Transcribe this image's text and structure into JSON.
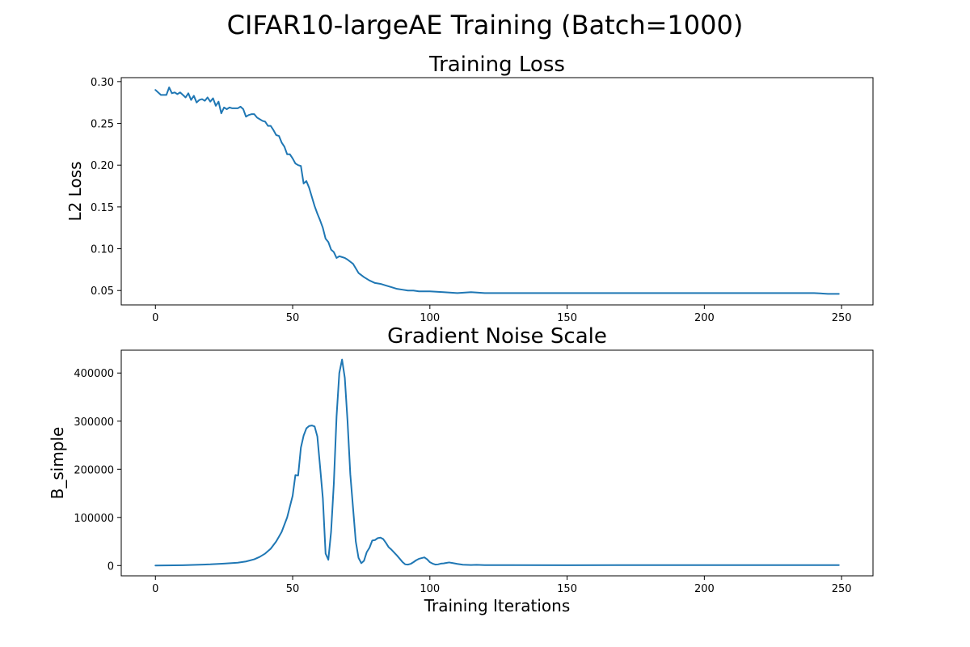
{
  "figure": {
    "suptitle": "CIFAR10-largeAE Training (Batch=1000)"
  },
  "chart_data": [
    {
      "type": "line",
      "title": "Training Loss",
      "xlabel": "",
      "ylabel": "L2 Loss",
      "xlim": [
        -12.45,
        261.45
      ],
      "ylim": [
        0.0328,
        0.3047
      ],
      "xticks": [
        0,
        50,
        100,
        150,
        200,
        250
      ],
      "xtick_labels": [
        "0",
        "50",
        "100",
        "150",
        "200",
        "250"
      ],
      "yticks": [
        0.05,
        0.1,
        0.15,
        0.2,
        0.25,
        0.3
      ],
      "ytick_labels": [
        "0.05",
        "0.10",
        "0.15",
        "0.20",
        "0.25",
        "0.30"
      ],
      "grid": false,
      "color": "#1f77b4",
      "series": [
        {
          "x": [
            0,
            2,
            3,
            4,
            5,
            6,
            7,
            8,
            9,
            10,
            11,
            12,
            13,
            14,
            15,
            16,
            17,
            18,
            19,
            20,
            21,
            22,
            23,
            24,
            25,
            26,
            27,
            28,
            29,
            30,
            31,
            32,
            33,
            34,
            35,
            36,
            37,
            38,
            39,
            40,
            41,
            42,
            43,
            44,
            45,
            46,
            47,
            48,
            49,
            50,
            51,
            52,
            53,
            54,
            55,
            56,
            57,
            58,
            59,
            60,
            61,
            62,
            63,
            64,
            65,
            66,
            67,
            68,
            69,
            70,
            72,
            74,
            76,
            78,
            80,
            82,
            84,
            86,
            88,
            90,
            92,
            94,
            96,
            98,
            100,
            105,
            110,
            115,
            120,
            125,
            130,
            135,
            140,
            145,
            150,
            155,
            160,
            165,
            170,
            175,
            180,
            185,
            190,
            195,
            200,
            205,
            210,
            215,
            220,
            225,
            230,
            235,
            240,
            245,
            249
          ],
          "y": [
            0.29,
            0.284,
            0.284,
            0.284,
            0.293,
            0.286,
            0.287,
            0.285,
            0.287,
            0.284,
            0.281,
            0.286,
            0.278,
            0.283,
            0.275,
            0.278,
            0.279,
            0.277,
            0.281,
            0.276,
            0.28,
            0.271,
            0.276,
            0.262,
            0.269,
            0.267,
            0.269,
            0.268,
            0.268,
            0.268,
            0.27,
            0.267,
            0.258,
            0.26,
            0.261,
            0.261,
            0.257,
            0.255,
            0.253,
            0.252,
            0.247,
            0.247,
            0.242,
            0.236,
            0.235,
            0.227,
            0.222,
            0.213,
            0.213,
            0.208,
            0.202,
            0.2,
            0.199,
            0.178,
            0.181,
            0.173,
            0.162,
            0.151,
            0.142,
            0.134,
            0.125,
            0.112,
            0.108,
            0.099,
            0.096,
            0.089,
            0.091,
            0.09,
            0.089,
            0.087,
            0.082,
            0.071,
            0.066,
            0.062,
            0.059,
            0.058,
            0.056,
            0.054,
            0.052,
            0.051,
            0.05,
            0.05,
            0.049,
            0.049,
            0.049,
            0.048,
            0.047,
            0.048,
            0.047,
            0.047,
            0.047,
            0.047,
            0.047,
            0.047,
            0.047,
            0.047,
            0.047,
            0.047,
            0.047,
            0.047,
            0.047,
            0.047,
            0.047,
            0.047,
            0.047,
            0.047,
            0.047,
            0.047,
            0.047,
            0.047,
            0.047,
            0.047,
            0.047,
            0.046,
            0.046
          ]
        }
      ]
    },
    {
      "type": "line",
      "title": "Gradient Noise Scale",
      "xlabel": "Training Iterations",
      "ylabel": "B_simple",
      "xlim": [
        -12.45,
        261.45
      ],
      "ylim": [
        -21350,
        447460
      ],
      "xticks": [
        0,
        50,
        100,
        150,
        200,
        250
      ],
      "xtick_labels": [
        "0",
        "50",
        "100",
        "150",
        "200",
        "250"
      ],
      "yticks": [
        0,
        100000,
        200000,
        300000,
        400000
      ],
      "ytick_labels": [
        "0",
        "100000",
        "200000",
        "300000",
        "400000"
      ],
      "grid": false,
      "color": "#1f77b4",
      "series": [
        {
          "x": [
            0,
            10,
            20,
            25,
            30,
            33,
            36,
            38,
            40,
            42,
            44,
            45,
            46,
            48,
            50,
            51,
            52,
            53,
            54,
            55,
            56,
            57,
            58,
            59,
            60,
            61,
            62,
            63,
            64,
            65,
            66,
            67,
            68,
            69,
            70,
            71,
            72,
            73,
            74,
            75,
            76,
            77,
            78,
            79,
            80,
            81,
            82,
            83,
            84,
            85,
            86,
            88,
            90,
            91,
            92,
            93,
            94,
            95,
            96,
            97,
            98,
            99,
            100,
            101,
            102,
            103,
            104,
            105,
            106,
            107,
            108,
            109,
            110,
            112,
            115,
            117,
            120,
            150,
            200,
            249
          ],
          "y": [
            0,
            800,
            2500,
            4000,
            6000,
            8500,
            13000,
            18000,
            25000,
            35000,
            50000,
            60000,
            70000,
            100000,
            145000,
            188000,
            187000,
            245000,
            270000,
            285000,
            290000,
            291000,
            289000,
            268000,
            205000,
            140000,
            25000,
            12000,
            70000,
            170000,
            310000,
            400000,
            428000,
            390000,
            300000,
            190000,
            120000,
            50000,
            16000,
            5000,
            10000,
            28000,
            37000,
            52000,
            53000,
            57000,
            58000,
            55000,
            47000,
            38000,
            33000,
            21000,
            7500,
            2500,
            2000,
            3500,
            7000,
            11000,
            14000,
            15500,
            17000,
            13000,
            7000,
            4000,
            2000,
            2500,
            4000,
            4500,
            5500,
            6500,
            5500,
            4500,
            3500,
            1800,
            1200,
            1500,
            1000,
            800,
            900,
            1000
          ]
        }
      ]
    }
  ]
}
